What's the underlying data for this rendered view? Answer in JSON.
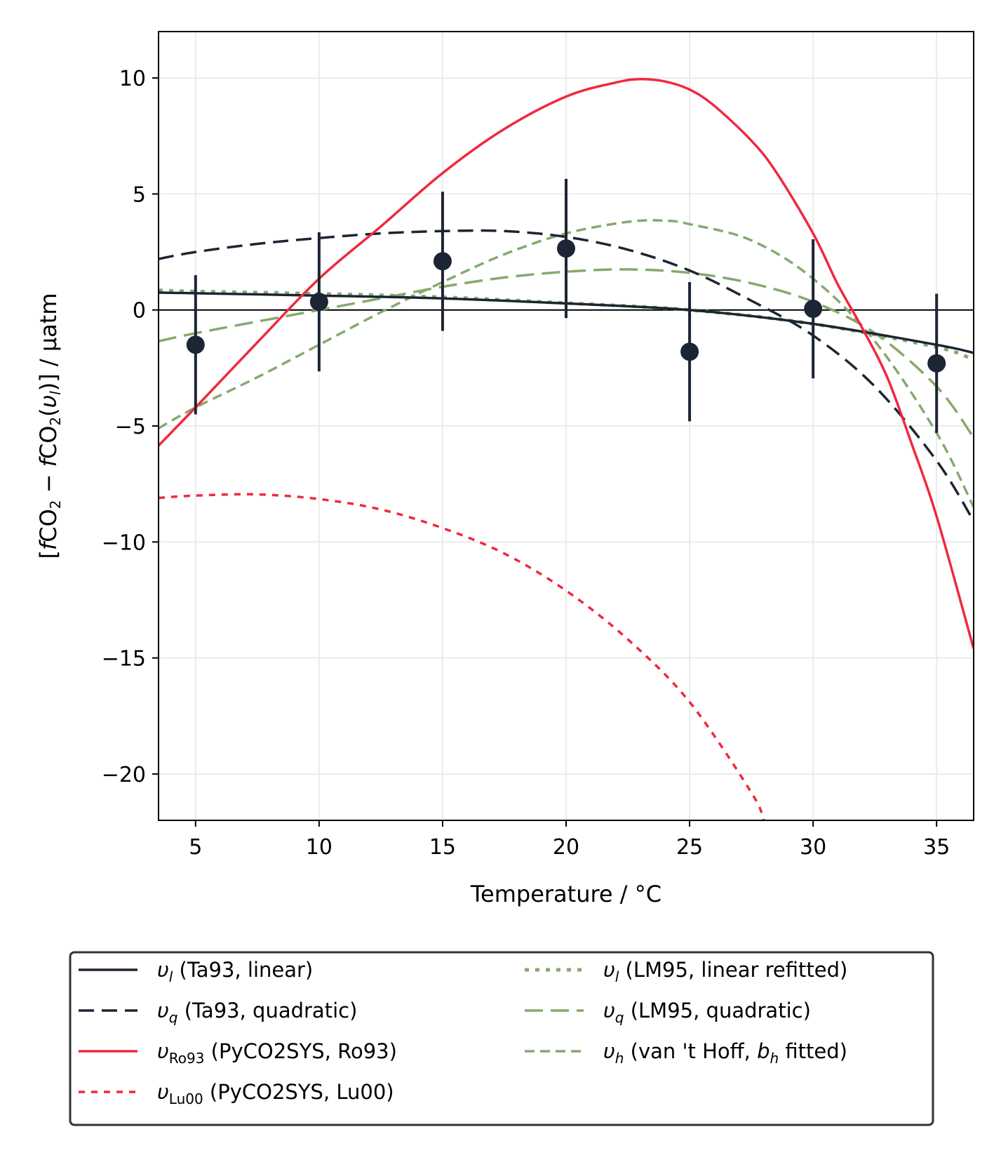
{
  "chart_data": {
    "type": "line",
    "title": "",
    "xlabel": "Temperature / °C",
    "ylabel_parts": [
      "[",
      "f",
      "CO",
      "2",
      " − ",
      "f",
      "CO",
      "2",
      "(",
      "υ",
      "l",
      ")] / µatm"
    ],
    "xlim": [
      3.5,
      36.5
    ],
    "ylim": [
      -22,
      12
    ],
    "xticks": [
      5,
      10,
      15,
      20,
      25,
      30,
      35
    ],
    "yticks": [
      -20,
      -15,
      -10,
      -5,
      0,
      5,
      10
    ],
    "xtick_labels": [
      "5",
      "10",
      "15",
      "20",
      "25",
      "30",
      "35"
    ],
    "ytick_labels": [
      "−20",
      "−15",
      "−10",
      "−5",
      "0",
      "5",
      "10"
    ],
    "grid": true,
    "zero_line": true,
    "measurements": {
      "x": [
        5,
        10,
        15,
        20,
        25,
        30,
        35
      ],
      "y": [
        -1.5,
        0.35,
        2.1,
        2.65,
        -1.8,
        0.05,
        -2.3
      ],
      "err": [
        3.0,
        3.0,
        3.0,
        3.0,
        3.0,
        3.0,
        3.0
      ],
      "color": "#1c2533"
    },
    "series": [
      {
        "name": "υl (Ta93, linear)",
        "sym": "υ",
        "sub": "l",
        "sub_italic": true,
        "desc": " (Ta93, linear)",
        "color": "#1c2533",
        "style": "solid",
        "x": [
          3.5,
          5,
          10,
          15,
          20,
          25,
          30,
          35,
          36.5
        ],
        "y": [
          0.75,
          0.72,
          0.62,
          0.5,
          0.28,
          0.0,
          -0.6,
          -1.5,
          -1.85
        ]
      },
      {
        "name": "υq (Ta93, quadratic)",
        "sym": "υ",
        "sub": "q",
        "sub_italic": true,
        "desc": " (Ta93, quadratic)",
        "color": "#1c2533",
        "style": "dashed",
        "x": [
          3.5,
          5,
          7.5,
          10,
          12.5,
          15,
          17.5,
          20,
          22.5,
          25,
          27.5,
          30,
          32.5,
          35,
          36.5
        ],
        "y": [
          2.2,
          2.5,
          2.85,
          3.1,
          3.3,
          3.4,
          3.4,
          3.15,
          2.6,
          1.7,
          0.4,
          -1.1,
          -3.3,
          -6.5,
          -9.1
        ]
      },
      {
        "name": "υRo93 (PyCO2SYS, Ro93)",
        "sym": "υ",
        "sub": "Ro93",
        "sub_italic": false,
        "desc": " (PyCO2SYS, Ro93)",
        "color": "#f0283f",
        "style": "solid",
        "x": [
          3.5,
          5,
          7.5,
          10,
          12.5,
          15,
          17.5,
          20,
          22,
          23,
          24,
          25,
          26,
          27.5,
          28.5,
          30,
          31,
          32,
          33,
          34,
          35,
          36.5
        ],
        "y": [
          -5.85,
          -4.2,
          -1.4,
          1.35,
          3.6,
          5.9,
          7.8,
          9.2,
          9.8,
          9.95,
          9.85,
          9.5,
          8.8,
          7.3,
          5.95,
          3.3,
          1.1,
          -0.8,
          -2.9,
          -5.8,
          -8.9,
          -14.6
        ]
      },
      {
        "name": "υLu00 (PyCO2SYS, Lu00)",
        "sym": "υ",
        "sub": "Lu00",
        "sub_italic": false,
        "desc": " (PyCO2SYS, Lu00)",
        "color": "#f0283f",
        "style": "dotted",
        "x": [
          3.5,
          5,
          7.5,
          10,
          12.5,
          15,
          17.5,
          20,
          22.5,
          25,
          27.5,
          28.0
        ],
        "y": [
          -8.1,
          -8.0,
          -7.95,
          -8.15,
          -8.6,
          -9.4,
          -10.5,
          -12.1,
          -14.2,
          -16.9,
          -20.8,
          -22.0
        ]
      },
      {
        "name": "υl (LM95, linear refitted)",
        "sym": "υ",
        "sub": "l",
        "sub_italic": true,
        "desc": " (LM95, linear refitted)",
        "color": "#86a96f",
        "style": "densedot",
        "x": [
          3.5,
          5,
          10,
          15,
          20,
          25,
          30,
          35,
          36.5
        ],
        "y": [
          0.85,
          0.8,
          0.7,
          0.55,
          0.3,
          0.0,
          -0.6,
          -1.6,
          -2.15
        ]
      },
      {
        "name": "υq (LM95, quadratic)",
        "sym": "υ",
        "sub": "q",
        "sub_italic": true,
        "desc": " (LM95, quadratic)",
        "color": "#86a96f",
        "style": "longdash",
        "x": [
          3.5,
          5,
          7.5,
          10,
          12.5,
          15,
          17.5,
          20,
          22.5,
          25,
          27.5,
          30,
          32.5,
          35,
          36.5
        ],
        "y": [
          -1.35,
          -1.0,
          -0.5,
          0.0,
          0.5,
          1.0,
          1.4,
          1.65,
          1.75,
          1.6,
          1.15,
          0.35,
          -1.0,
          -3.3,
          -5.5
        ]
      },
      {
        "name": "υh (van 't Hoff, bh fitted)",
        "sym": "υ",
        "sub": "h",
        "sub_italic": true,
        "desc": " (van 't Hoff, ",
        "desc_b": "b",
        "desc_b_sub": "h",
        "desc_end": " fitted)",
        "color": "#86a96f",
        "style": "shortdash",
        "x": [
          3.5,
          5,
          7.5,
          10,
          12.5,
          15,
          17.5,
          20,
          22.5,
          24,
          25,
          27.5,
          30,
          32.5,
          35,
          36.5
        ],
        "y": [
          -5.1,
          -4.2,
          -2.9,
          -1.5,
          -0.1,
          1.2,
          2.4,
          3.3,
          3.8,
          3.85,
          3.7,
          3.0,
          1.35,
          -1.35,
          -5.3,
          -8.5
        ]
      }
    ],
    "legend_position": "bottom"
  }
}
